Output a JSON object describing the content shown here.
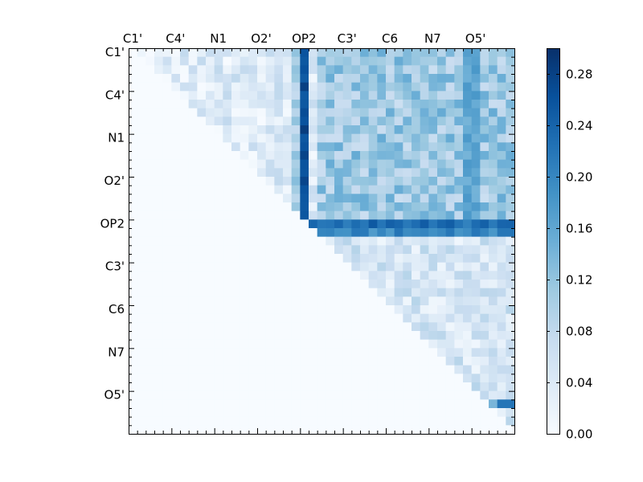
{
  "chart_data": {
    "type": "heatmap",
    "title": "",
    "xlabel": "",
    "ylabel": "",
    "matrix_size": 45,
    "x_tick_labels": [
      "C1'",
      "C4'",
      "N1",
      "O2'",
      "OP2",
      "C3'",
      "C6",
      "N7",
      "O5'"
    ],
    "y_tick_labels": [
      "C1'",
      "C4'",
      "N1",
      "O2'",
      "OP2",
      "C3'",
      "C6",
      "N7",
      "O5'"
    ],
    "tick_label_step": 5,
    "colorbar": {
      "range": [
        0.0,
        0.3
      ],
      "colormap": "Blues",
      "ticks": [
        "0.00",
        "0.04",
        "0.08",
        "0.12",
        "0.16",
        "0.20",
        "0.24",
        "0.28"
      ],
      "tick_values": [
        0.0,
        0.04,
        0.08,
        0.12,
        0.16,
        0.2,
        0.24,
        0.28
      ]
    },
    "band_values": {
      "column_20": 0.27,
      "column_19": 0.1,
      "row_20": 0.23,
      "row_21": 0.2,
      "columns_39_40": 0.16,
      "dark_tail_row_41": [
        0.14,
        0.22,
        0.22
      ],
      "upper_right_typical": 0.11,
      "lower_right_typical": 0.05,
      "upper_left_typical": 0.04
    },
    "colors": {
      "low": "#f7fbff",
      "high": "#08306b"
    }
  }
}
